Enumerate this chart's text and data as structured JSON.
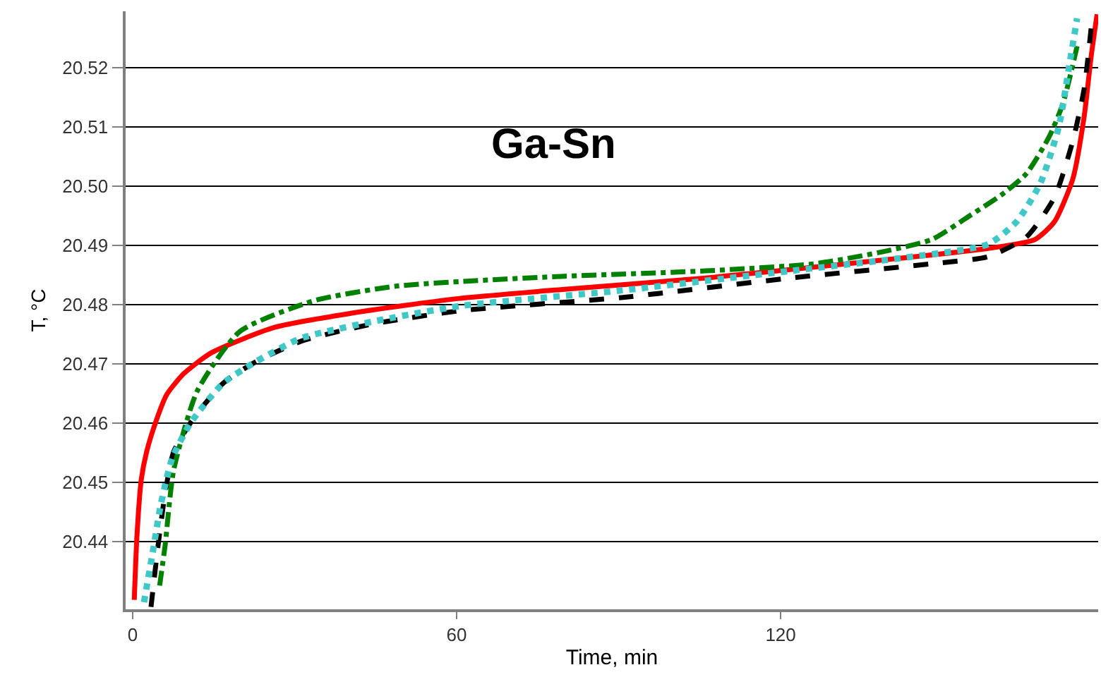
{
  "chart_data": {
    "type": "line",
    "title": "Ga-Sn",
    "xlabel": "Time, min",
    "ylabel": "T, °C",
    "xlim": [
      -1.3,
      178.8
    ],
    "ylim": [
      20.4286,
      20.5295
    ],
    "xticks": [
      0,
      60,
      120
    ],
    "yticks": [
      20.44,
      20.45,
      20.46,
      20.47,
      20.48,
      20.49,
      {
        "value": 20.5,
        "label": "20.50"
      },
      20.51,
      20.52
    ],
    "grid": "y",
    "marker": "none",
    "series": [
      {
        "color": "#ff0000",
        "line_style": "solid",
        "x": [
          0.3,
          0.8,
          1.6,
          2.6,
          4.2,
          6.3,
          9.4,
          14.6,
          26.4,
          40.8,
          59.9,
          80.0,
          106.1,
          132.3,
          158.4,
          167.1,
          170.7,
          174.1,
          176.2,
          177.5,
          178.6
        ],
        "values": [
          20.4302,
          20.441,
          20.4505,
          20.4552,
          20.46,
          20.4648,
          20.4683,
          20.4719,
          20.4762,
          20.4786,
          20.481,
          20.4826,
          20.4845,
          20.4869,
          20.4895,
          20.491,
          20.494,
          20.5012,
          20.5117,
          20.5219,
          20.529
        ]
      },
      {
        "color": "#000000",
        "line_style": "dashed",
        "x": [
          3.4,
          4.7,
          6.0,
          7.6,
          11.2,
          16.7,
          22.5,
          31.1,
          44.2,
          60.9,
          90.5,
          121.8,
          148.0,
          158.4,
          165.5,
          170.7,
          174.1,
          176.2,
          177.5
        ],
        "values": [
          20.429,
          20.4393,
          20.4481,
          20.4552,
          20.4607,
          20.4667,
          20.4702,
          20.4738,
          20.4767,
          20.479,
          20.4812,
          20.4845,
          20.4869,
          20.4881,
          20.4914,
          20.4981,
          20.5076,
          20.5164,
          20.5267
        ]
      },
      {
        "color": "#008000",
        "line_style": "dashdot",
        "x": [
          5.0,
          6.0,
          7.6,
          12.0,
          19.9,
          33.7,
          48.6,
          62.5,
          80.0,
          106.1,
          126.3,
          139.3,
          148.0,
          155.0,
          161.0,
          165.5,
          169.7,
          172.3,
          174.9
        ],
        "values": [
          20.4326,
          20.4393,
          20.4521,
          20.4655,
          20.4755,
          20.4807,
          20.4831,
          20.484,
          20.4848,
          20.4857,
          20.4869,
          20.489,
          20.491,
          20.495,
          20.4986,
          20.5021,
          20.5083,
          20.514,
          20.5236
        ]
      },
      {
        "color": "#40c8c8",
        "line_style": "dotted",
        "x": [
          2.1,
          3.7,
          5.2,
          7.3,
          10.7,
          16.7,
          22.5,
          31.1,
          44.2,
          60.9,
          90.5,
          121.8,
          142.7,
          158.4,
          163.7,
          168.1,
          171.5,
          173.6,
          174.9
        ],
        "values": [
          20.4298,
          20.4381,
          20.4462,
          20.454,
          20.46,
          20.4667,
          20.4702,
          20.4743,
          20.4771,
          20.4798,
          20.4824,
          20.4857,
          20.4879,
          20.4902,
          20.494,
          20.5005,
          20.51,
          20.5212,
          20.5283
        ]
      }
    ]
  }
}
